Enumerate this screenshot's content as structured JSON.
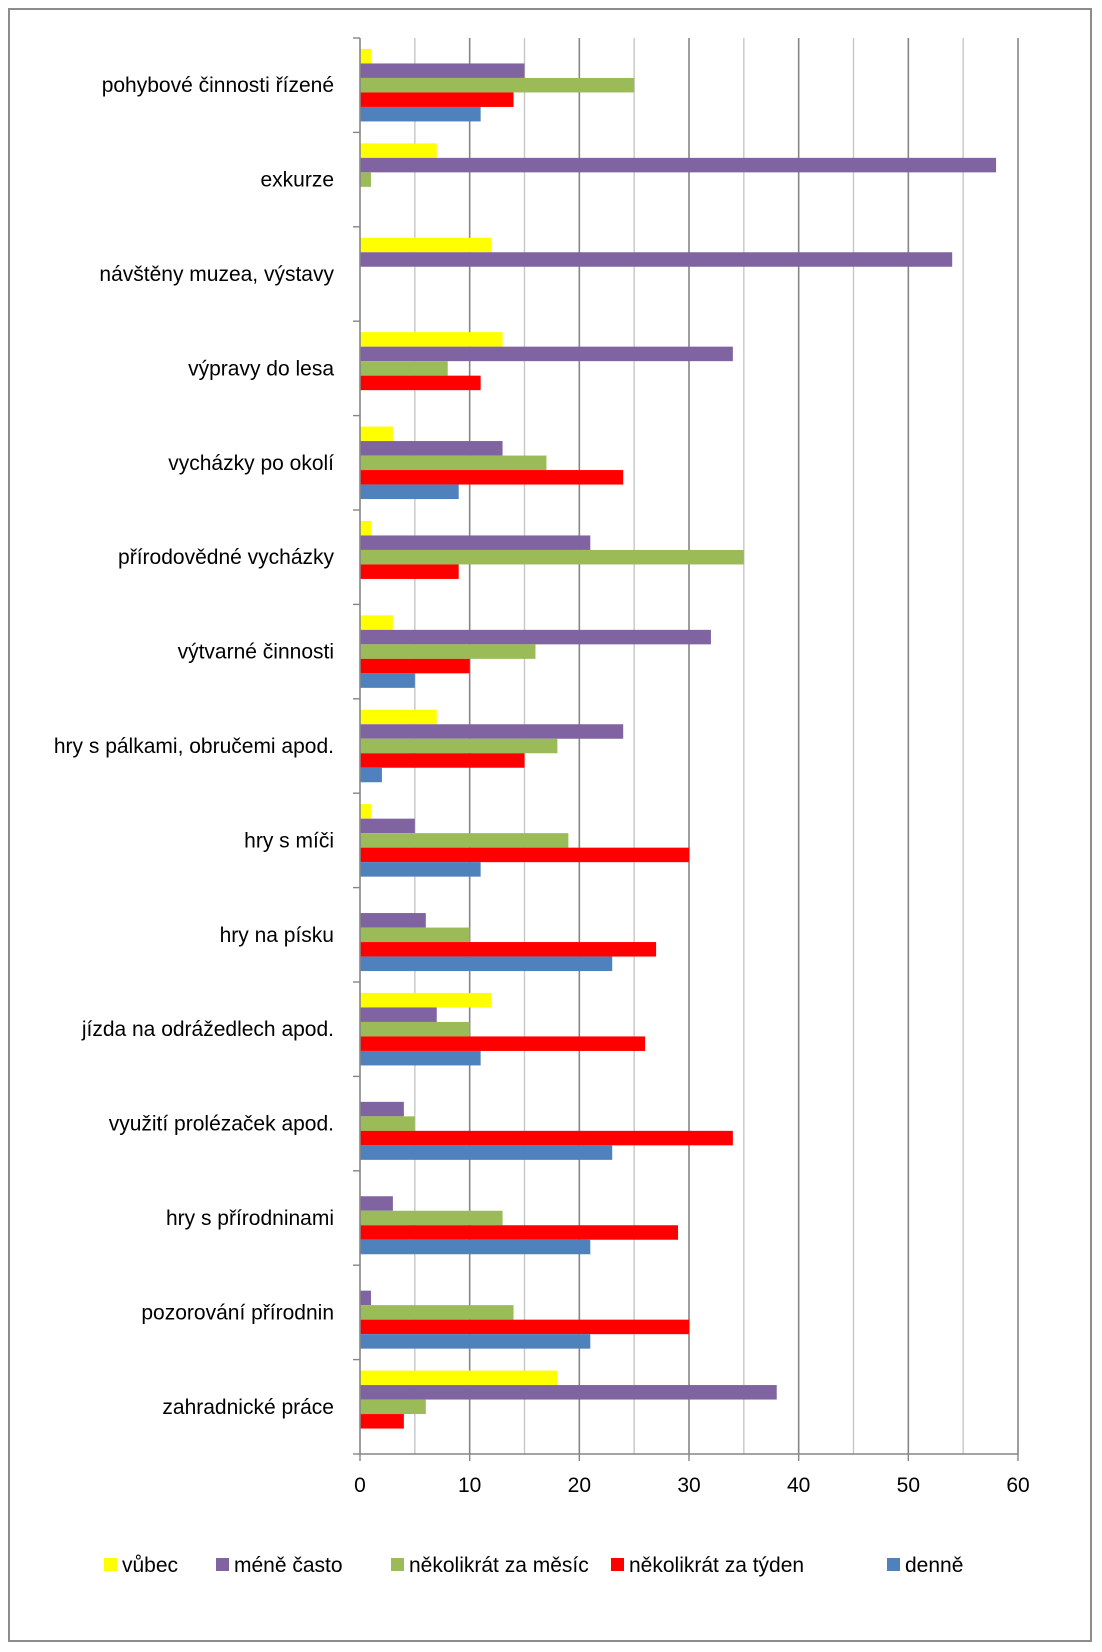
{
  "chart_data": {
    "type": "bar",
    "orientation": "horizontal",
    "categories": [
      "pohybové činnosti řízené",
      "exkurze",
      "návštěny muzea, výstavy",
      "výpravy do lesa",
      "vycházky po okolí",
      "přírodovědné vycházky",
      "výtvarné činnosti",
      "hry s pálkami, obručemi apod.",
      "hry s míči",
      "hry na písku",
      "jízda na odrážedlech apod.",
      "využití prolézaček apod.",
      "hry s přírodninami",
      "pozorování přírodnin",
      "zahradnické práce"
    ],
    "series": [
      {
        "name": "vůbec",
        "color": "#ffff00",
        "values": [
          1,
          7,
          12,
          13,
          3,
          1,
          3,
          7,
          1,
          0,
          12,
          0,
          0,
          0,
          18
        ]
      },
      {
        "name": "méně často",
        "color": "#8064a2",
        "values": [
          15,
          58,
          54,
          34,
          13,
          21,
          32,
          24,
          5,
          6,
          7,
          4,
          3,
          1,
          38
        ]
      },
      {
        "name": "několikrát za měsíc",
        "color": "#9bbb59",
        "values": [
          25,
          1,
          0,
          8,
          17,
          35,
          16,
          18,
          19,
          10,
          10,
          5,
          13,
          14,
          6
        ]
      },
      {
        "name": "několikrát za týden",
        "color": "#ff0000",
        "values": [
          14,
          0,
          0,
          11,
          24,
          9,
          10,
          15,
          30,
          27,
          26,
          34,
          29,
          30,
          4
        ]
      },
      {
        "name": "denně",
        "color": "#4f81bd",
        "values": [
          11,
          0,
          0,
          0,
          9,
          0,
          5,
          2,
          11,
          23,
          11,
          23,
          21,
          21,
          0
        ]
      }
    ],
    "xlim": [
      0,
      60
    ],
    "x_ticks": [
      "0",
      "10",
      "20",
      "30",
      "40",
      "50",
      "60"
    ],
    "grid": true,
    "legend_position": "bottom"
  }
}
